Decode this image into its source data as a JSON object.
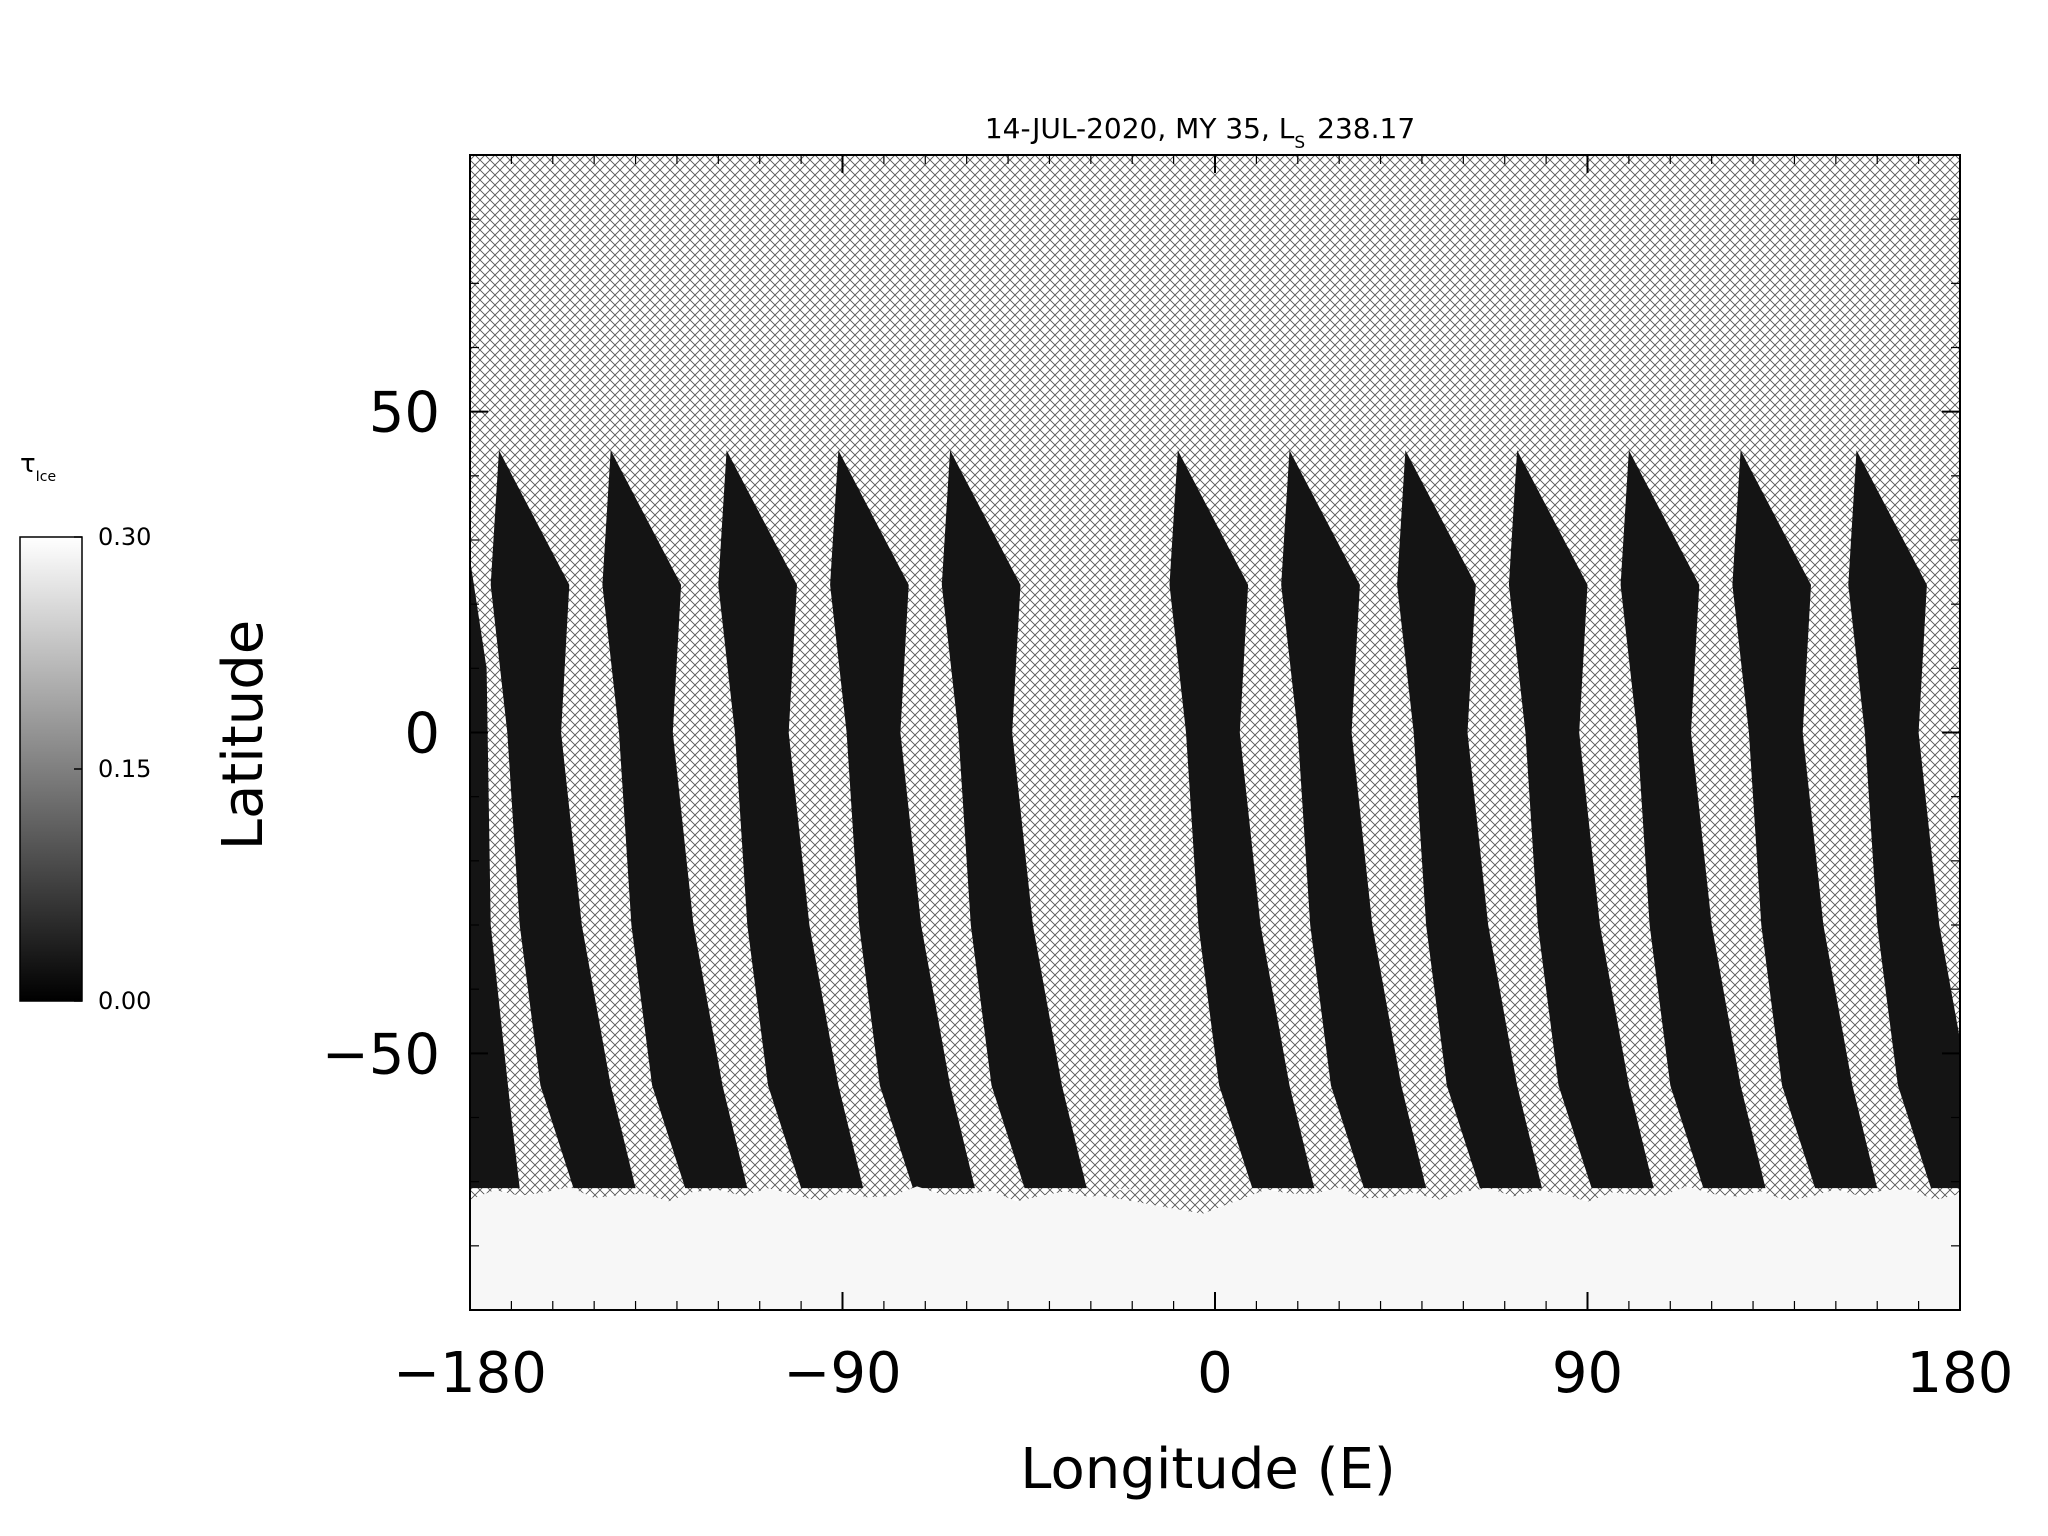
{
  "chart_data": {
    "type": "heatmap",
    "title": "14-JUL-2020, MY 35,  L",
    "title_sub": "S",
    "title_value": "238.17",
    "xlabel": "Longitude (E)",
    "ylabel": "Latitude",
    "xlim": [
      -180,
      180
    ],
    "ylim": [
      -90,
      90
    ],
    "xticks": [
      -180,
      -90,
      0,
      90,
      180
    ],
    "xtick_labels": [
      "−180",
      "−90",
      "0",
      "90",
      "180"
    ],
    "yticks": [
      -50,
      0,
      50
    ],
    "ytick_labels": [
      "−50",
      "0",
      "50"
    ],
    "colorbar": {
      "label": "τ",
      "label_sub": "Ice",
      "min": 0.0,
      "max": 0.3,
      "ticks": [
        0.0,
        0.15,
        0.3
      ],
      "tick_labels": [
        "0.00",
        "0.15",
        "0.30"
      ],
      "colormap": "grayscale"
    },
    "no_data_pattern": "crosshatch",
    "swaths": [
      {
        "lon_north": -173,
        "lat_north": 44
      },
      {
        "lon_north": -146,
        "lat_north": 44
      },
      {
        "lon_north": -118,
        "lat_north": 44
      },
      {
        "lon_north": -91,
        "lat_north": 44
      },
      {
        "lon_north": -64,
        "lat_north": 44
      },
      {
        "lon_north": -9,
        "lat_north": 44
      },
      {
        "lon_north": 18,
        "lat_north": 44
      },
      {
        "lon_north": 46,
        "lat_north": 44
      },
      {
        "lon_north": 73,
        "lat_north": 44
      },
      {
        "lon_north": 100,
        "lat_north": 44
      },
      {
        "lon_north": 127,
        "lat_north": 44
      },
      {
        "lon_north": 155,
        "lat_north": 44
      }
    ],
    "south_polar_cap": {
      "lat_edge": -71,
      "ice_opacity": 0.3
    }
  }
}
